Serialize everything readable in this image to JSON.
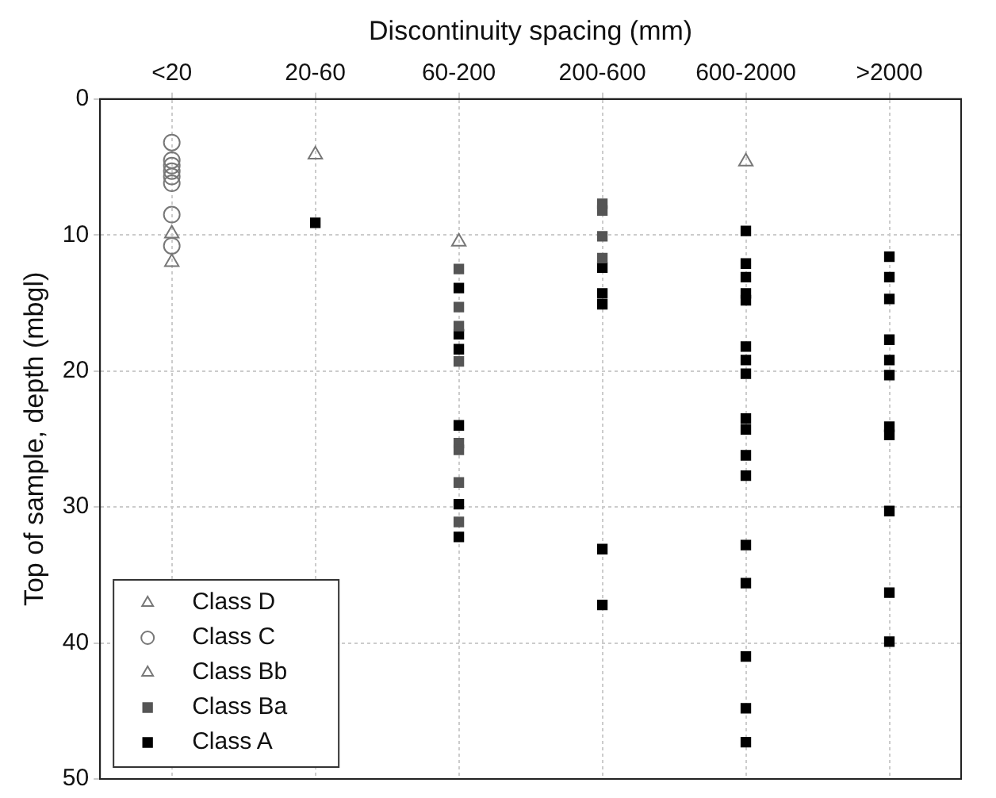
{
  "chart_data": {
    "type": "scatter",
    "xlabel": "Discontinuity spacing (mm)",
    "ylabel": "Top of sample, depth (mbgl)",
    "categories": [
      "<20",
      "20-60",
      "60-200",
      "200-600",
      "600-2000",
      ">2000"
    ],
    "ylim": [
      50,
      0
    ],
    "yticks": [
      0,
      10,
      20,
      30,
      40,
      50
    ],
    "grid": true,
    "legend": "bottom left",
    "series": [
      {
        "name": "Class D",
        "color": "#777777",
        "marker": "triangle",
        "x": [
          "<20",
          "20-60",
          "60-200",
          "200-600",
          "600-2000",
          ">2000"
        ],
        "values": [
          null,
          null,
          null,
          null,
          null,
          null
        ]
      },
      {
        "name": "Class C",
        "color": "#777777",
        "marker": "circle",
        "x": [
          "<20",
          "<20",
          "<20",
          "<20",
          "<20",
          "<20",
          "<20",
          "<20"
        ],
        "values": [
          3.2,
          4.5,
          4.9,
          5.3,
          5.7,
          6.2,
          8.5,
          10.8
        ]
      },
      {
        "name": "Class Bb",
        "color": "#777777",
        "marker": "triangle",
        "x": [
          "<20",
          "<20",
          "20-60",
          "60-200",
          "600-2000"
        ],
        "values": [
          9.9,
          12.0,
          4.1,
          10.5,
          4.6
        ]
      },
      {
        "name": "Class Ba",
        "color": "#555555",
        "marker": "square",
        "x": [
          "60-200",
          "60-200",
          "60-200",
          "60-200",
          "60-200",
          "60-200",
          "60-200",
          "60-200",
          "200-600",
          "200-600",
          "200-600",
          "200-600"
        ],
        "values": [
          12.5,
          15.3,
          16.7,
          19.3,
          25.3,
          25.8,
          28.2,
          31.1,
          7.7,
          8.2,
          10.1,
          11.7
        ]
      },
      {
        "name": "Class A",
        "color": "#000000",
        "marker": "square",
        "x": [
          "20-60",
          "60-200",
          "60-200",
          "60-200",
          "60-200",
          "60-200",
          "60-200",
          "200-600",
          "200-600",
          "200-600",
          "200-600",
          "200-600",
          "600-2000",
          "600-2000",
          "600-2000",
          "600-2000",
          "600-2000",
          "600-2000",
          "600-2000",
          "600-2000",
          "600-2000",
          "600-2000",
          "600-2000",
          "600-2000",
          "600-2000",
          "600-2000",
          "600-2000",
          "600-2000",
          "600-2000",
          ">2000",
          ">2000",
          ">2000",
          ">2000",
          ">2000",
          ">2000",
          ">2000",
          ">2000",
          ">2000",
          ">2000",
          ">2000"
        ],
        "values": [
          9.1,
          13.9,
          17.3,
          18.4,
          24.0,
          29.8,
          32.2,
          12.4,
          14.3,
          15.1,
          33.1,
          37.2,
          9.7,
          12.1,
          13.1,
          14.3,
          14.8,
          18.2,
          19.2,
          20.2,
          23.5,
          24.3,
          26.2,
          27.7,
          32.8,
          35.6,
          41.0,
          44.8,
          47.3,
          11.6,
          13.1,
          14.7,
          17.7,
          19.2,
          20.3,
          24.1,
          24.7,
          30.3,
          36.3,
          39.9
        ]
      }
    ]
  }
}
